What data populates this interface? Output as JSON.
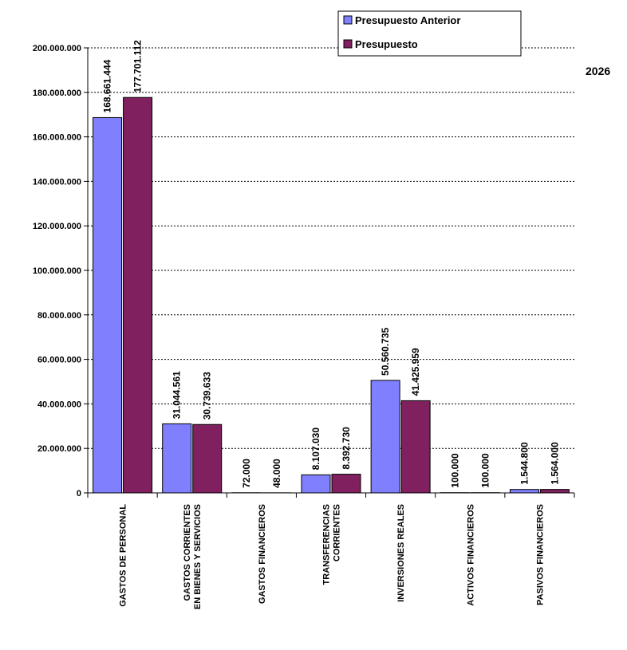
{
  "chart_data": {
    "type": "bar",
    "title": "2026",
    "xlabel": "",
    "ylabel": "",
    "ylim": [
      0,
      200000000
    ],
    "ytick_step": 20000000,
    "yticks": [
      "0",
      "20.000.000",
      "40.000.000",
      "60.000.000",
      "80.000.000",
      "100.000.000",
      "120.000.000",
      "140.000.000",
      "160.000.000",
      "180.000.000",
      "200.000.000"
    ],
    "grid": true,
    "legend_position": "top-right",
    "categories": [
      [
        "GASTOS DE PERSONAL"
      ],
      [
        "GASTOS CORRIENTES",
        "EN BIENES Y SERVICIOS"
      ],
      [
        "GASTOS FINANCIEROS"
      ],
      [
        "TRANSFERENCIAS",
        "CORRIENTES"
      ],
      [
        "INVERSIONES REALES"
      ],
      [
        "ACTIVOS FINANCIEROS"
      ],
      [
        "PASIVOS FINANCIEROS"
      ]
    ],
    "series": [
      {
        "name": "Presupuesto Anterior",
        "color": "#8080ff",
        "values": [
          168661444,
          31044561,
          72000,
          8107030,
          50560735,
          100000,
          1544800
        ],
        "labels": [
          "168.661.444",
          "31.044.561",
          "72.000",
          "8.107.030",
          "50.560.735",
          "100.000",
          "1.544.800"
        ]
      },
      {
        "name": "Presupuesto",
        "color": "#80205f",
        "values": [
          177701112,
          30739633,
          48000,
          8392730,
          41425959,
          100000,
          1564000
        ],
        "labels": [
          "177.701.112",
          "30.739.633",
          "48.000",
          "8.392.730",
          "41.425.959",
          "100.000",
          "1.564.000"
        ]
      }
    ]
  }
}
